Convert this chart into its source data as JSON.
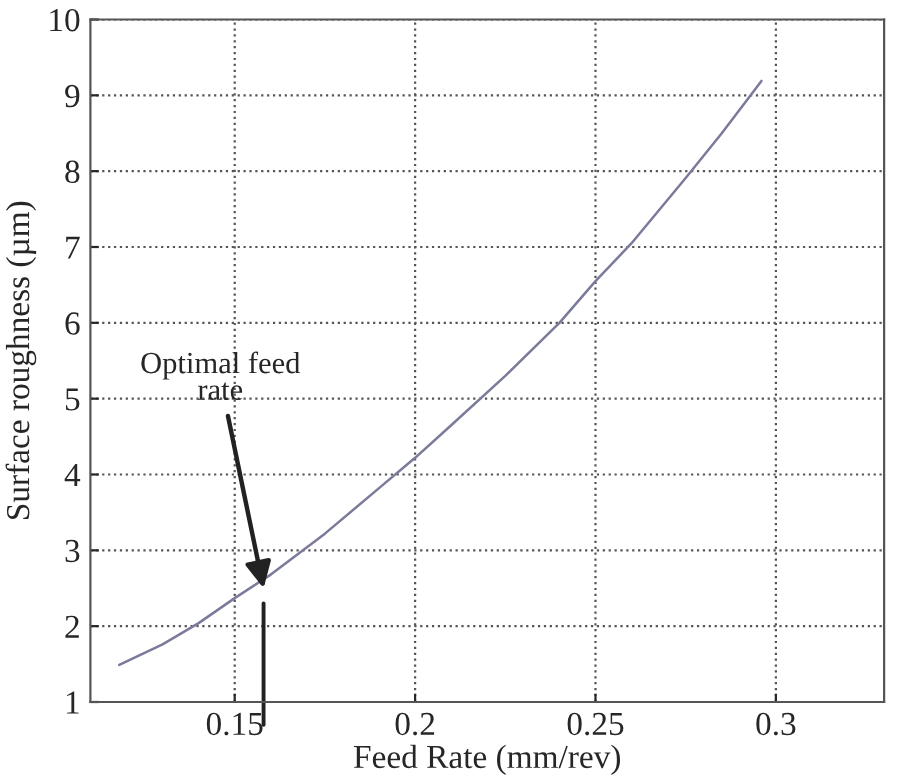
{
  "chart_data": {
    "type": "line",
    "xlabel": "Feed Rate (mm/rev)",
    "ylabel": "Surface roughness (µm)",
    "x": [
      0.118,
      0.13,
      0.14,
      0.15,
      0.16,
      0.175,
      0.19,
      0.2,
      0.21,
      0.225,
      0.24,
      0.25,
      0.26,
      0.275,
      0.285,
      0.296
    ],
    "series": [
      {
        "color": "#7a7a9a",
        "values": [
          1.49,
          1.76,
          2.04,
          2.37,
          2.68,
          3.22,
          3.82,
          4.22,
          4.65,
          5.3,
          6.0,
          6.55,
          7.05,
          7.91,
          8.5,
          9.19
        ]
      }
    ],
    "xlim": [
      0.11,
      0.33
    ],
    "xticks": [
      0.15,
      0.2,
      0.25,
      0.3
    ],
    "ylim": [
      1,
      10
    ],
    "yticks": [
      1,
      2,
      3,
      4,
      5,
      6,
      7,
      8,
      9,
      10
    ],
    "grid": true,
    "legend": false,
    "marker": "none",
    "line_style": "solid",
    "annotations": [
      {
        "text": "Optimal feed\nrate",
        "x": 0.158,
        "y": 2.5
      }
    ]
  }
}
